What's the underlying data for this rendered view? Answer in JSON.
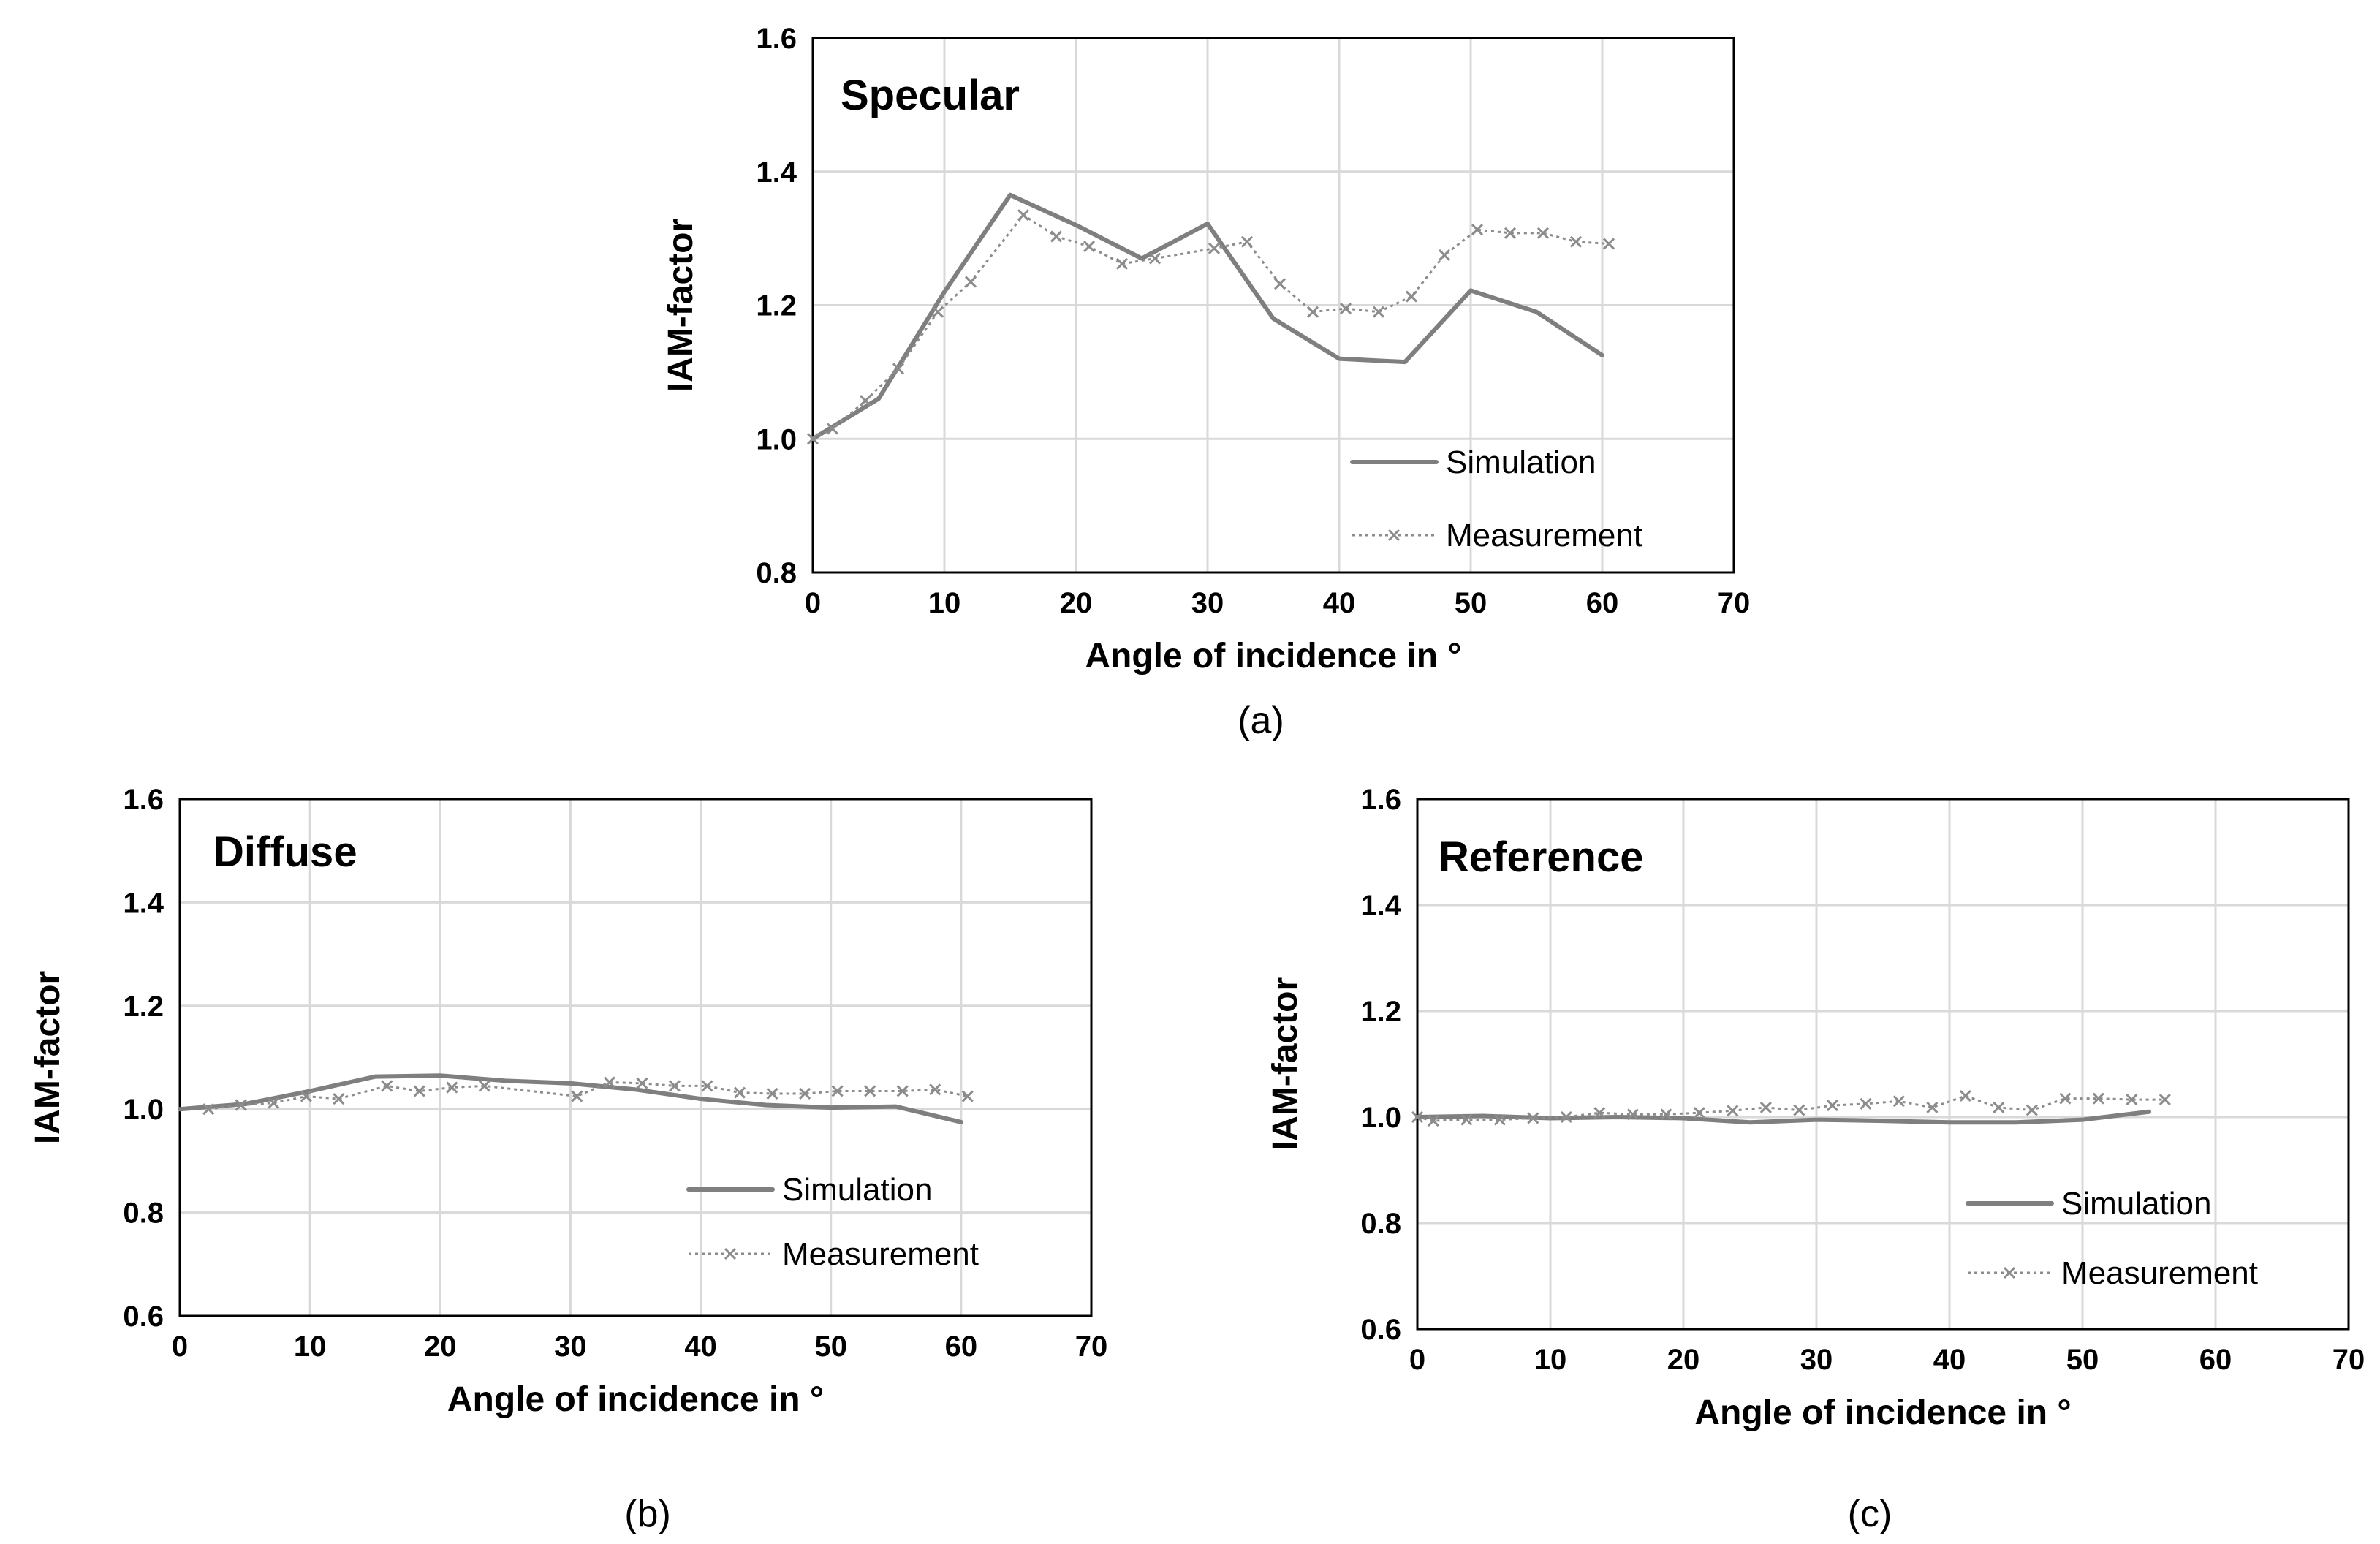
{
  "chart_data": [
    {
      "id": "a",
      "type": "line",
      "title": "Specular",
      "caption": "(a)",
      "xlabel": "Angle of incidence in °",
      "ylabel": "IAM-factor",
      "xlim": [
        0,
        70
      ],
      "ylim": [
        0.8,
        1.6
      ],
      "xticks": [
        0,
        10,
        20,
        30,
        40,
        50,
        60,
        70
      ],
      "yticks": [
        0.8,
        1.0,
        1.2,
        1.4,
        1.6
      ],
      "ytick_labels": [
        "0.8",
        "1.0",
        "1.2",
        "1.4",
        "1.6"
      ],
      "legend_position": "bottom-right",
      "series": [
        {
          "name": "Simulation",
          "style": "solid",
          "color": "#7f7f7f",
          "x": [
            0,
            5,
            10,
            15,
            20,
            25,
            30,
            35,
            40,
            45,
            50,
            55,
            60
          ],
          "y": [
            1.0,
            1.06,
            1.22,
            1.365,
            1.32,
            1.27,
            1.322,
            1.18,
            1.12,
            1.115,
            1.222,
            1.19,
            1.125
          ]
        },
        {
          "name": "Measurement",
          "style": "dotted-x",
          "color": "#8c8c8c",
          "x": [
            0,
            1.5,
            4,
            6.5,
            9.5,
            12,
            16,
            18.5,
            21,
            23.5,
            26,
            30.5,
            33,
            35.5,
            38,
            40.5,
            43,
            45.5,
            48,
            50.5,
            53,
            55.5,
            58,
            60.5
          ],
          "y": [
            1.0,
            1.015,
            1.057,
            1.105,
            1.19,
            1.235,
            1.335,
            1.303,
            1.288,
            1.262,
            1.27,
            1.285,
            1.295,
            1.232,
            1.19,
            1.195,
            1.19,
            1.213,
            1.275,
            1.313,
            1.308,
            1.308,
            1.295,
            1.292
          ]
        }
      ]
    },
    {
      "id": "b",
      "type": "line",
      "title": "Diffuse",
      "caption": "(b)",
      "xlabel": "Angle of incidence in °",
      "ylabel": "IAM-factor",
      "xlim": [
        0,
        70
      ],
      "ylim": [
        0.6,
        1.6
      ],
      "xticks": [
        0,
        10,
        20,
        30,
        40,
        50,
        60,
        70
      ],
      "yticks": [
        0.6,
        0.8,
        1.0,
        1.2,
        1.4,
        1.6
      ],
      "ytick_labels": [
        "0.6",
        "0.8",
        "1.0",
        "1.2",
        "1.4",
        "1.6"
      ],
      "legend_position": "bottom-right",
      "series": [
        {
          "name": "Simulation",
          "style": "solid",
          "color": "#7f7f7f",
          "x": [
            0,
            5,
            10,
            15,
            20,
            25,
            30,
            35,
            40,
            45,
            50,
            55,
            60
          ],
          "y": [
            1.0,
            1.01,
            1.035,
            1.063,
            1.065,
            1.055,
            1.05,
            1.038,
            1.02,
            1.008,
            1.003,
            1.005,
            0.975
          ]
        },
        {
          "name": "Measurement",
          "style": "dotted-x",
          "color": "#8c8c8c",
          "x": [
            2.2,
            4.7,
            7.2,
            9.7,
            12.2,
            15.9,
            18.4,
            20.9,
            23.4,
            30.5,
            33,
            35.5,
            38,
            40.5,
            43,
            45.5,
            48,
            50.5,
            53,
            55.5,
            58,
            60.5
          ],
          "y": [
            1.0,
            1.008,
            1.012,
            1.025,
            1.02,
            1.045,
            1.035,
            1.042,
            1.045,
            1.025,
            1.052,
            1.05,
            1.045,
            1.045,
            1.032,
            1.03,
            1.03,
            1.035,
            1.035,
            1.035,
            1.038,
            1.025
          ]
        }
      ]
    },
    {
      "id": "c",
      "type": "line",
      "title": "Reference",
      "caption": "(c)",
      "xlabel": "Angle of incidence in °",
      "ylabel": "IAM-factor",
      "xlim": [
        0,
        70
      ],
      "ylim": [
        0.6,
        1.6
      ],
      "xticks": [
        0,
        10,
        20,
        30,
        40,
        50,
        60,
        70
      ],
      "yticks": [
        0.6,
        0.8,
        1.0,
        1.2,
        1.4,
        1.6
      ],
      "ytick_labels": [
        "0.6",
        "0.8",
        "1.0",
        "1.2",
        "1.4",
        "1.6"
      ],
      "legend_position": "bottom-right",
      "series": [
        {
          "name": "Simulation",
          "style": "solid",
          "color": "#7f7f7f",
          "x": [
            0,
            5,
            10,
            15,
            20,
            25,
            30,
            35,
            40,
            45,
            50,
            55
          ],
          "y": [
            1.0,
            1.002,
            0.998,
            1.0,
            0.998,
            0.99,
            0.995,
            0.993,
            0.99,
            0.99,
            0.995,
            1.01
          ]
        },
        {
          "name": "Measurement",
          "style": "dotted-x",
          "color": "#8c8c8c",
          "x": [
            0,
            1.2,
            3.7,
            6.2,
            8.7,
            11.2,
            13.7,
            16.2,
            18.7,
            21.2,
            23.7,
            26.2,
            28.7,
            31.2,
            33.7,
            36.2,
            38.7,
            41.2,
            43.7,
            46.2,
            48.7,
            51.2,
            53.7,
            56.2
          ],
          "y": [
            1.0,
            0.993,
            0.995,
            0.995,
            0.998,
            1.0,
            1.008,
            1.005,
            1.005,
            1.008,
            1.012,
            1.018,
            1.013,
            1.022,
            1.025,
            1.03,
            1.018,
            1.04,
            1.018,
            1.013,
            1.035,
            1.035,
            1.033,
            1.033
          ]
        }
      ]
    }
  ]
}
